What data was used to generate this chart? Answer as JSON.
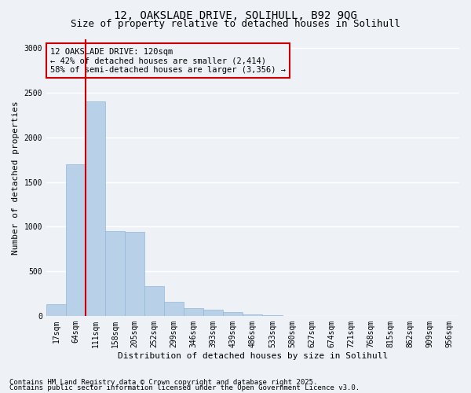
{
  "title_line1": "12, OAKSLADE DRIVE, SOLIHULL, B92 9QG",
  "title_line2": "Size of property relative to detached houses in Solihull",
  "xlabel": "Distribution of detached houses by size in Solihull",
  "ylabel": "Number of detached properties",
  "categories": [
    "17sqm",
    "64sqm",
    "111sqm",
    "158sqm",
    "205sqm",
    "252sqm",
    "299sqm",
    "346sqm",
    "393sqm",
    "439sqm",
    "486sqm",
    "533sqm",
    "580sqm",
    "627sqm",
    "674sqm",
    "721sqm",
    "768sqm",
    "815sqm",
    "862sqm",
    "909sqm",
    "956sqm"
  ],
  "values": [
    135,
    1700,
    2400,
    950,
    940,
    330,
    155,
    90,
    65,
    45,
    20,
    5,
    2,
    2,
    1,
    0,
    0,
    0,
    0,
    0,
    0
  ],
  "bar_color": "#b8d0e8",
  "bar_edge_color": "#93b8d8",
  "bg_color": "#eef2f7",
  "grid_color": "#ffffff",
  "vline_color": "#cc0000",
  "annotation_text": "12 OAKSLADE DRIVE: 120sqm\n← 42% of detached houses are smaller (2,414)\n58% of semi-detached houses are larger (3,356) →",
  "annotation_box_color": "#cc0000",
  "ylim": [
    0,
    3100
  ],
  "yticks": [
    0,
    500,
    1000,
    1500,
    2000,
    2500,
    3000
  ],
  "footer_line1": "Contains HM Land Registry data © Crown copyright and database right 2025.",
  "footer_line2": "Contains public sector information licensed under the Open Government Licence v3.0.",
  "title_fontsize": 10,
  "subtitle_fontsize": 9,
  "axis_label_fontsize": 8,
  "tick_fontsize": 7,
  "annotation_fontsize": 7.5,
  "footer_fontsize": 6.5
}
